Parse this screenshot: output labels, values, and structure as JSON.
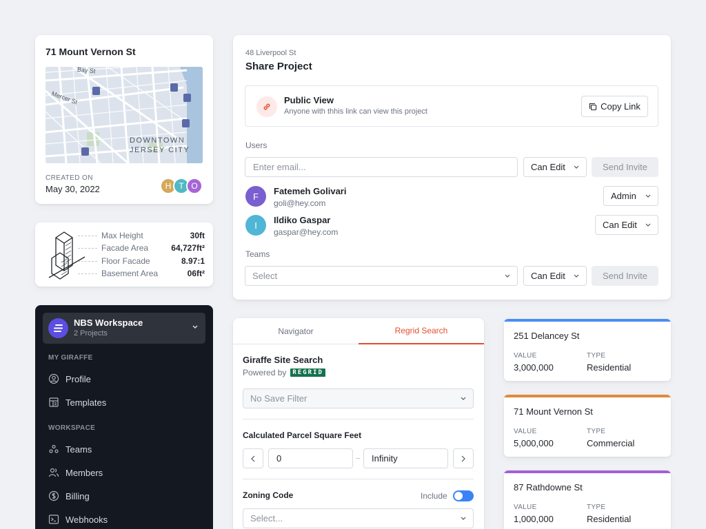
{
  "project_card": {
    "title": "71 Mount Vernon St",
    "map_labels": [
      "Bay St",
      "Mercer St",
      "DOWNTOWN",
      "JERSEY CITY"
    ],
    "created_label": "CREATED ON",
    "created_date": "May 30, 2022",
    "avatars": [
      {
        "initial": "H",
        "color": "#d5a85a"
      },
      {
        "initial": "T",
        "color": "#4fb9c4"
      },
      {
        "initial": "O",
        "color": "#a765d6"
      }
    ]
  },
  "stats_card": {
    "rows": [
      {
        "label": "Max Height",
        "value": "30ft"
      },
      {
        "label": "Facade Area",
        "value": "64,727ft²"
      },
      {
        "label": "Floor Facade",
        "value": "8.97:1"
      },
      {
        "label": "Basement Area",
        "value": "06ft²"
      }
    ]
  },
  "sidebar": {
    "workspace_name": "NBS Workspace",
    "workspace_sub": "2 Projects",
    "section_my": "MY GIRAFFE",
    "my_items": [
      {
        "label": "Profile",
        "icon": "user-circle-icon"
      },
      {
        "label": "Templates",
        "icon": "template-icon"
      }
    ],
    "section_ws": "WORKSPACE",
    "ws_items": [
      {
        "label": "Teams",
        "icon": "teams-icon"
      },
      {
        "label": "Members",
        "icon": "members-icon"
      },
      {
        "label": "Billing",
        "icon": "dollar-icon"
      },
      {
        "label": "Webhooks",
        "icon": "terminal-icon"
      }
    ]
  },
  "share": {
    "subtitle": "48 Liverpool St",
    "title": "Share Project",
    "public_title": "Public View",
    "public_desc": "Anyone with thhis link can view this project",
    "copy_link": "Copy Link",
    "users_label": "Users",
    "email_placeholder": "Enter email...",
    "permission": "Can Edit",
    "send_invite": "Send Invite",
    "users": [
      {
        "initial": "F",
        "name": "Fatemeh Golivari",
        "email": "goli@hey.com",
        "role": "Admin",
        "color": "#7a5fd1"
      },
      {
        "initial": "I",
        "name": "Ildiko Gaspar",
        "email": "gaspar@hey.com",
        "role": "Can Edit",
        "color": "#4fb6d6"
      }
    ],
    "teams_label": "Teams",
    "teams_placeholder": "Select",
    "teams_permission": "Can Edit",
    "teams_send": "Send Invite"
  },
  "search": {
    "tabs": [
      "Navigator",
      "Regrid Search"
    ],
    "active_tab": 1,
    "title": "Giraffe Site Search",
    "powered_by": "Powered by",
    "brand": "REGRID",
    "filter_placeholder": "No Save Filter",
    "parcel_label": "Calculated Parcel Square Feet",
    "parcel_min": "0",
    "parcel_max": "Infinity",
    "zoning_label": "Zoning Code",
    "include_label": "Include",
    "include_on": true,
    "zoning_placeholder": "Select..."
  },
  "properties": [
    {
      "name": "251 Delancey St",
      "value_label": "VALUE",
      "value": "3,000,000",
      "type_label": "TYPE",
      "type": "Residential",
      "color": "#4a8ff0"
    },
    {
      "name": "71 Mount Vernon St",
      "value_label": "VALUE",
      "value": "5,000,000",
      "type_label": "TYPE",
      "type": "Commercial",
      "color": "#e08a3c"
    },
    {
      "name": "87 Rathdowne St",
      "value_label": "VALUE",
      "value": "1,000,000",
      "type_label": "TYPE",
      "type": "Residential",
      "color": "#a35fd8"
    }
  ],
  "colors": {
    "accent": "#e24f2f",
    "sidebar_bg": "#141821",
    "toggle_on": "#3b82f6"
  }
}
